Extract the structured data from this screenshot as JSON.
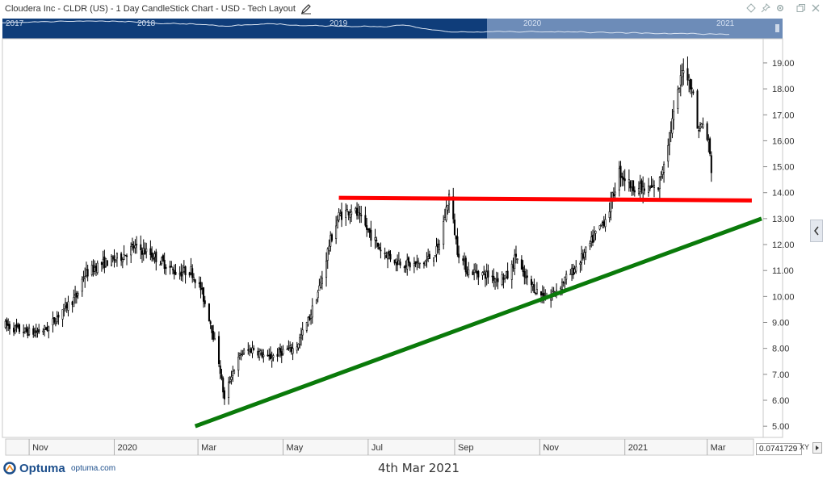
{
  "window": {
    "title": "Cloudera Inc - CLDR (US) - 1 Day CandleStick Chart - USD - Tech Layout"
  },
  "navigator": {
    "years": [
      "2017",
      "2018",
      "2019",
      "2020",
      "2021"
    ],
    "accent_color": "#0f3d7a",
    "window_color": "#6d8cb8"
  },
  "chart_data": {
    "type": "candlestick",
    "symbol": "CLDR",
    "title": "Cloudera Inc - CLDR (US) - 1 Day CandleStick Chart - USD - Tech Layout",
    "xlabel": "",
    "ylabel": "",
    "x_tick_labels": [
      "Nov",
      "2020",
      "Mar",
      "May",
      "Jul",
      "Sep",
      "Nov",
      "2021",
      "Mar"
    ],
    "x_tick_dates": [
      "2019-11-01",
      "2020-01-01",
      "2020-03-01",
      "2020-05-01",
      "2020-07-01",
      "2020-09-01",
      "2020-11-01",
      "2021-01-01",
      "2021-03-01"
    ],
    "y_tick_labels": [
      "5.00",
      "6.00",
      "7.00",
      "8.00",
      "9.00",
      "10.00",
      "11.00",
      "12.00",
      "13.00",
      "14.00",
      "15.00",
      "16.00",
      "17.00",
      "18.00",
      "19.00"
    ],
    "xlim": [
      "2019-10-14",
      "2021-04-09"
    ],
    "ylim": [
      4.6,
      19.9
    ],
    "grid": false,
    "price_path": [
      [
        "2019-10-15",
        8.9
      ],
      [
        "2019-10-25",
        8.7
      ],
      [
        "2019-11-05",
        8.6
      ],
      [
        "2019-11-15",
        8.8
      ],
      [
        "2019-11-25",
        9.5
      ],
      [
        "2019-12-05",
        10.0
      ],
      [
        "2019-12-10",
        10.8
      ],
      [
        "2019-12-20",
        11.2
      ],
      [
        "2020-01-05",
        11.5
      ],
      [
        "2020-01-15",
        11.9
      ],
      [
        "2020-01-25",
        11.7
      ],
      [
        "2020-02-05",
        11.3
      ],
      [
        "2020-02-15",
        10.9
      ],
      [
        "2020-02-25",
        11.0
      ],
      [
        "2020-03-03",
        10.3
      ],
      [
        "2020-03-10",
        9.0
      ],
      [
        "2020-03-16",
        7.5
      ],
      [
        "2020-03-20",
        6.0
      ],
      [
        "2020-03-25",
        7.0
      ],
      [
        "2020-04-01",
        7.8
      ],
      [
        "2020-04-10",
        8.0
      ],
      [
        "2020-04-20",
        7.6
      ],
      [
        "2020-05-01",
        7.9
      ],
      [
        "2020-05-10",
        8.0
      ],
      [
        "2020-05-20",
        9.2
      ],
      [
        "2020-05-28",
        10.5
      ],
      [
        "2020-06-03",
        12.0
      ],
      [
        "2020-06-10",
        13.1
      ],
      [
        "2020-06-20",
        13.4
      ],
      [
        "2020-06-30",
        12.6
      ],
      [
        "2020-07-10",
        11.8
      ],
      [
        "2020-07-20",
        11.4
      ],
      [
        "2020-08-01",
        11.2
      ],
      [
        "2020-08-10",
        11.3
      ],
      [
        "2020-08-20",
        11.8
      ],
      [
        "2020-08-28",
        13.9
      ],
      [
        "2020-09-03",
        11.8
      ],
      [
        "2020-09-10",
        11.0
      ],
      [
        "2020-09-20",
        10.9
      ],
      [
        "2020-10-01",
        10.7
      ],
      [
        "2020-10-10",
        10.8
      ],
      [
        "2020-10-15",
        11.6
      ],
      [
        "2020-10-20",
        10.8
      ],
      [
        "2020-10-30",
        10.2
      ],
      [
        "2020-11-07",
        9.9
      ],
      [
        "2020-11-15",
        10.4
      ],
      [
        "2020-11-25",
        11.0
      ],
      [
        "2020-12-05",
        11.8
      ],
      [
        "2020-12-10",
        12.3
      ],
      [
        "2020-12-20",
        13.2
      ],
      [
        "2020-12-28",
        14.8
      ],
      [
        "2021-01-05",
        14.3
      ],
      [
        "2021-01-15",
        14.1
      ],
      [
        "2021-01-25",
        14.2
      ],
      [
        "2021-02-01",
        16.0
      ],
      [
        "2021-02-07",
        17.5
      ],
      [
        "2021-02-12",
        18.9
      ],
      [
        "2021-02-18",
        18.1
      ],
      [
        "2021-02-22",
        16.5
      ],
      [
        "2021-02-26",
        16.6
      ],
      [
        "2021-03-02",
        15.9
      ],
      [
        "2021-03-04",
        14.9
      ]
    ],
    "lines": [
      {
        "color": "#ff0000",
        "start": [
          "2020-06-10",
          13.8
        ],
        "end": [
          "2021-04-02",
          13.7
        ]
      },
      {
        "color": "#0a7a0a",
        "start": [
          "2020-02-28",
          5.0
        ],
        "end": [
          "2021-04-09",
          13.0
        ]
      }
    ]
  },
  "footer": {
    "brand": "Optuma",
    "brand_url": "optuma.com",
    "date": "4th Mar 2021",
    "zoom_value": "0.0741729",
    "xy_label": "XY"
  }
}
